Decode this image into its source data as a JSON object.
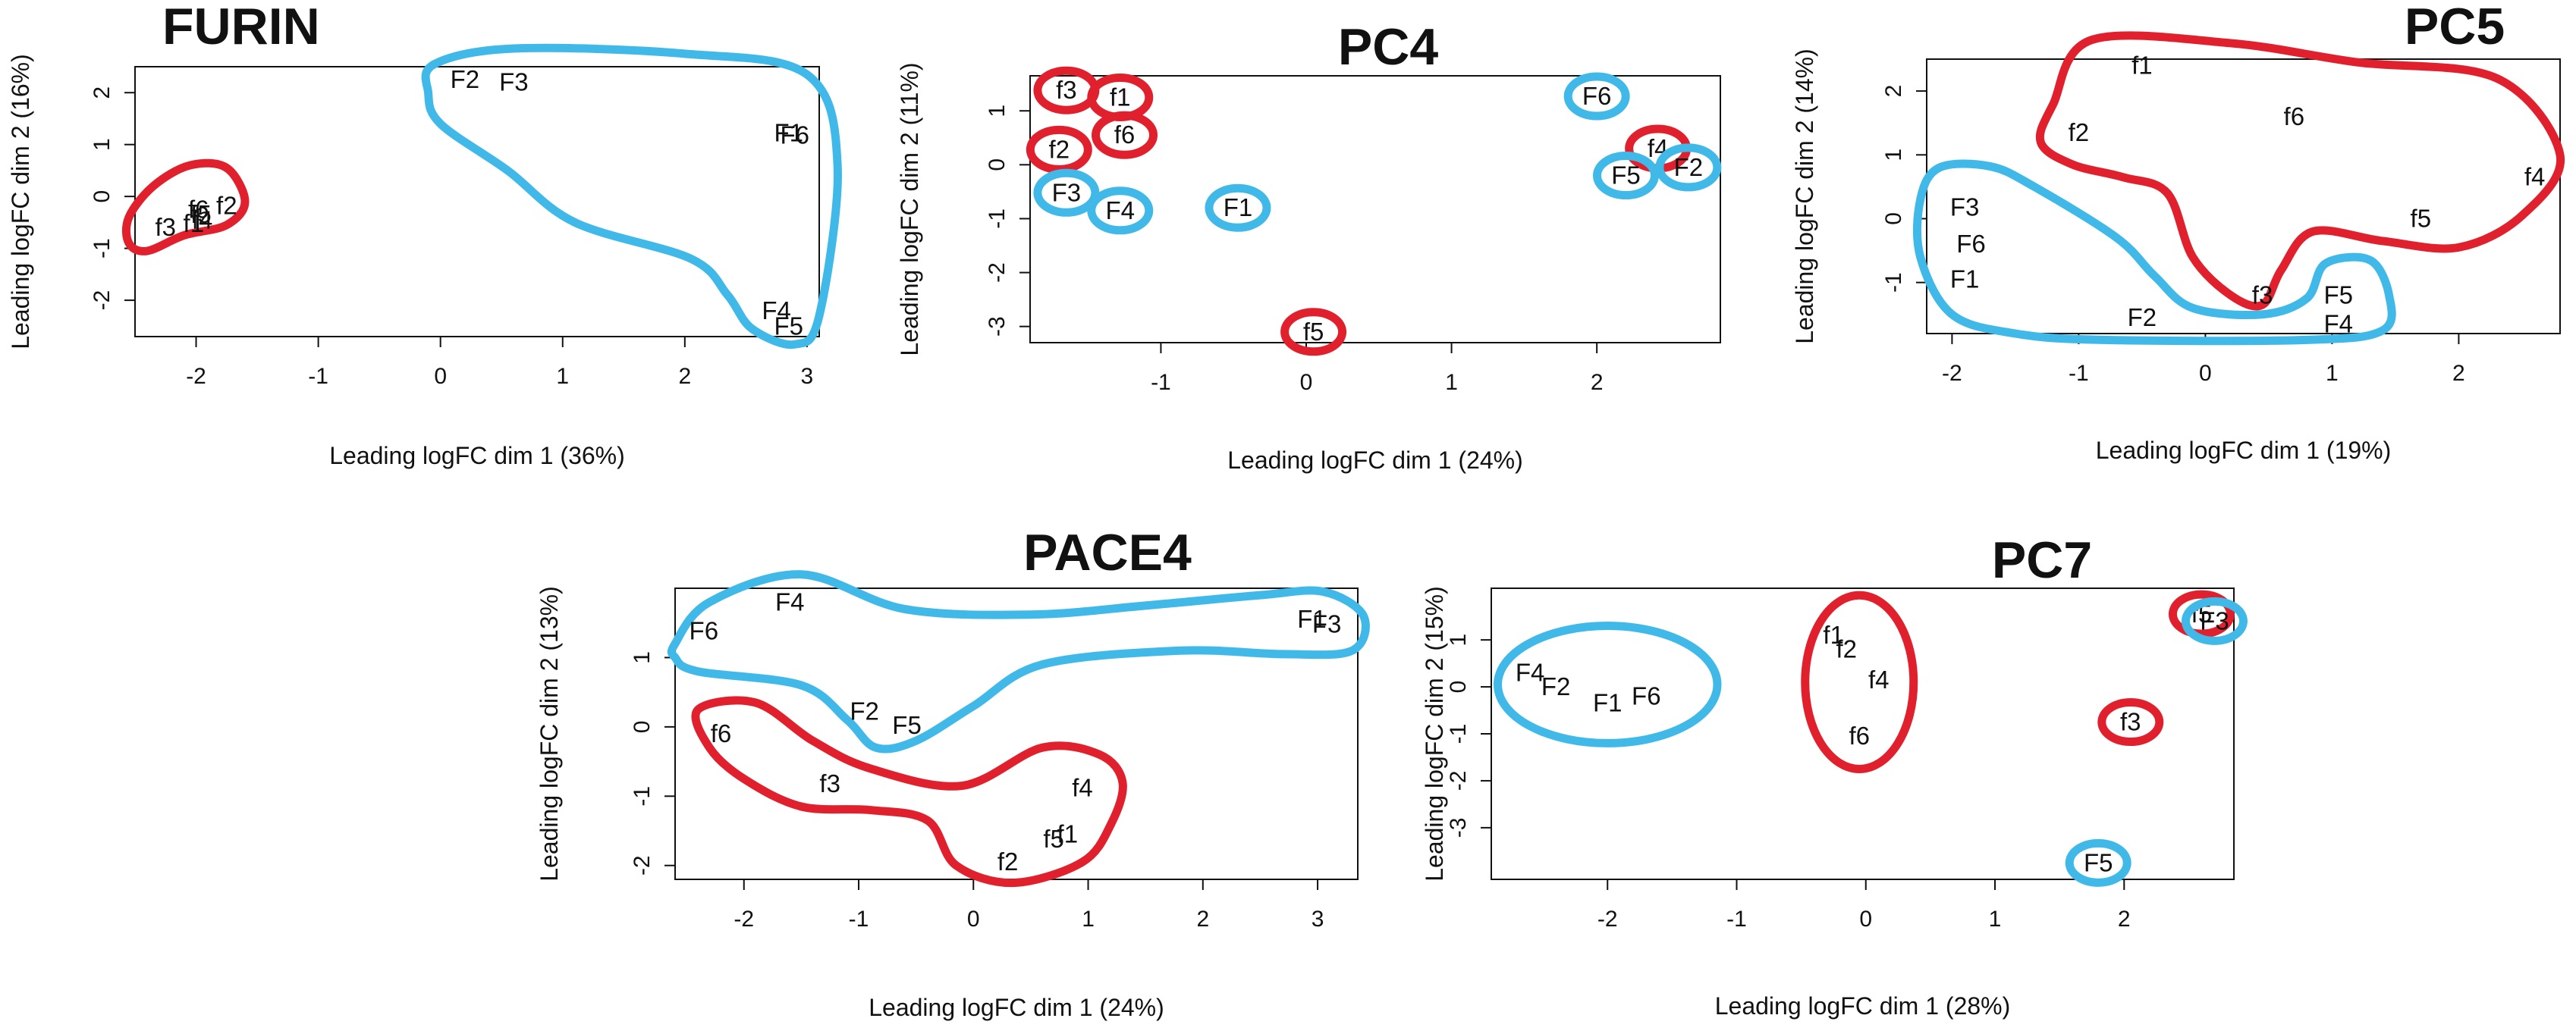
{
  "colors": {
    "cyan_group": "#41b9e8",
    "red_group": "#e1202d",
    "ink": "#111111"
  },
  "chart_data": [
    {
      "type": "scatter",
      "title": "FURIN",
      "xlabel": "Leading logFC dim 1 (36%)",
      "ylabel": "Leading logFC dim 2 (16%)",
      "xlim": [
        -2.5,
        3.1
      ],
      "ylim": [
        -2.7,
        2.5
      ],
      "xticks": [
        -2,
        -1,
        0,
        1,
        2,
        3
      ],
      "yticks": [
        -2,
        -1,
        0,
        1,
        2
      ],
      "points": [
        {
          "label": "F2",
          "x": 0.2,
          "y": 2.25
        },
        {
          "label": "F3",
          "x": 0.6,
          "y": 2.2
        },
        {
          "label": "F1",
          "x": 2.85,
          "y": 1.22
        },
        {
          "label": "F6",
          "x": 2.9,
          "y": 1.18
        },
        {
          "label": "F4",
          "x": 2.75,
          "y": -2.2
        },
        {
          "label": "F5",
          "x": 2.85,
          "y": -2.5
        },
        {
          "label": "f3",
          "x": -2.25,
          "y": -0.6
        },
        {
          "label": "f1",
          "x": -2.02,
          "y": -0.52
        },
        {
          "label": "f4",
          "x": -1.95,
          "y": -0.46
        },
        {
          "label": "f6",
          "x": -1.98,
          "y": -0.25
        },
        {
          "label": "f5",
          "x": -1.96,
          "y": -0.35
        },
        {
          "label": "f2",
          "x": -1.75,
          "y": -0.18
        }
      ],
      "groups": [
        {
          "color": "cyan",
          "shape": [
            [
              -0.05,
              2.55
            ],
            [
              0.6,
              2.85
            ],
            [
              2.0,
              2.75
            ],
            [
              3.0,
              2.35
            ],
            [
              3.25,
              0.6
            ],
            [
              3.1,
              -2.3
            ],
            [
              2.9,
              -2.85
            ],
            [
              2.55,
              -2.55
            ],
            [
              2.35,
              -1.9
            ],
            [
              2.05,
              -1.2
            ],
            [
              1.1,
              -0.5
            ],
            [
              0.55,
              0.5
            ],
            [
              0.0,
              1.4
            ],
            [
              -0.1,
              2.0
            ]
          ]
        },
        {
          "color": "red",
          "shape": [
            [
              -2.4,
              -1.05
            ],
            [
              -2.1,
              -0.75
            ],
            [
              -1.75,
              -0.55
            ],
            [
              -1.6,
              -0.1
            ],
            [
              -1.75,
              0.55
            ],
            [
              -2.05,
              0.6
            ],
            [
              -2.35,
              0.2
            ],
            [
              -2.55,
              -0.4
            ],
            [
              -2.55,
              -0.9
            ]
          ]
        }
      ]
    },
    {
      "type": "scatter",
      "title": "PC4",
      "xlabel": "Leading logFC dim 1 (24%)",
      "ylabel": "Leading logFC dim 2 (11%)",
      "xlim": [
        -1.9,
        2.85
      ],
      "ylim": [
        -3.3,
        1.65
      ],
      "xticks": [
        -1,
        0,
        1,
        2
      ],
      "yticks": [
        -3,
        -2,
        -1,
        0,
        1
      ],
      "points": [
        {
          "label": "f3",
          "x": -1.65,
          "y": 1.38,
          "color": "red",
          "ellipse": true
        },
        {
          "label": "f1",
          "x": -1.28,
          "y": 1.25,
          "color": "red",
          "ellipse": true
        },
        {
          "label": "f6",
          "x": -1.25,
          "y": 0.55,
          "color": "red",
          "ellipse": true
        },
        {
          "label": "f2",
          "x": -1.7,
          "y": 0.28,
          "color": "red",
          "ellipse": true
        },
        {
          "label": "F3",
          "x": -1.65,
          "y": -0.52,
          "color": "cyan",
          "ellipse": true
        },
        {
          "label": "F4",
          "x": -1.28,
          "y": -0.85,
          "color": "cyan",
          "ellipse": true
        },
        {
          "label": "F1",
          "x": -0.47,
          "y": -0.8,
          "color": "cyan",
          "ellipse": true
        },
        {
          "label": "f5",
          "x": 0.05,
          "y": -3.1,
          "color": "red",
          "ellipse": true
        },
        {
          "label": "F6",
          "x": 2.0,
          "y": 1.27,
          "color": "cyan",
          "ellipse": true
        },
        {
          "label": "f4",
          "x": 2.42,
          "y": 0.3,
          "color": "red",
          "ellipse": true
        },
        {
          "label": "F5",
          "x": 2.2,
          "y": -0.2,
          "color": "cyan",
          "ellipse": true
        },
        {
          "label": "F2",
          "x": 2.63,
          "y": -0.05,
          "color": "cyan",
          "ellipse": true
        }
      ]
    },
    {
      "type": "scatter",
      "title": "PC5",
      "xlabel": "Leading logFC dim 1 (19%)",
      "ylabel": "Leading logFC dim 2 (14%)",
      "xlim": [
        -2.2,
        2.8
      ],
      "ylim": [
        -1.8,
        2.5
      ],
      "xticks": [
        -2,
        -1,
        0,
        1,
        2
      ],
      "yticks": [
        -1,
        0,
        1,
        2
      ],
      "points": [
        {
          "label": "f1",
          "x": -0.5,
          "y": 2.4
        },
        {
          "label": "f6",
          "x": 0.7,
          "y": 1.6
        },
        {
          "label": "f2",
          "x": -1.0,
          "y": 1.35
        },
        {
          "label": "f4",
          "x": 2.6,
          "y": 0.65
        },
        {
          "label": "f5",
          "x": 1.7,
          "y": 0.0
        },
        {
          "label": "f3",
          "x": 0.45,
          "y": -1.2
        },
        {
          "label": "F3",
          "x": -1.9,
          "y": 0.18
        },
        {
          "label": "F6",
          "x": -1.85,
          "y": -0.4
        },
        {
          "label": "F1",
          "x": -1.9,
          "y": -0.95
        },
        {
          "label": "F2",
          "x": -0.5,
          "y": -1.55
        },
        {
          "label": "F5",
          "x": 1.05,
          "y": -1.2
        },
        {
          "label": "F4",
          "x": 1.05,
          "y": -1.65
        }
      ],
      "groups": [
        {
          "color": "red",
          "shape": [
            [
              -0.9,
              2.8
            ],
            [
              0.2,
              2.75
            ],
            [
              1.2,
              2.45
            ],
            [
              2.3,
              2.2
            ],
            [
              2.8,
              1.0
            ],
            [
              2.5,
              0.05
            ],
            [
              2.0,
              -0.45
            ],
            [
              1.4,
              -0.35
            ],
            [
              0.85,
              -0.2
            ],
            [
              0.6,
              -0.8
            ],
            [
              0.45,
              -1.35
            ],
            [
              0.2,
              -1.2
            ],
            [
              -0.1,
              -0.6
            ],
            [
              -0.3,
              0.4
            ],
            [
              -0.65,
              0.65
            ],
            [
              -1.05,
              0.85
            ],
            [
              -1.3,
              1.2
            ],
            [
              -1.2,
              1.8
            ]
          ]
        },
        {
          "color": "cyan",
          "shape": [
            [
              -2.1,
              0.8
            ],
            [
              -1.7,
              0.82
            ],
            [
              -1.35,
              0.5
            ],
            [
              -0.7,
              -0.3
            ],
            [
              -0.4,
              -0.9
            ],
            [
              -0.1,
              -1.4
            ],
            [
              0.45,
              -1.5
            ],
            [
              0.8,
              -1.25
            ],
            [
              0.95,
              -0.7
            ],
            [
              1.3,
              -0.65
            ],
            [
              1.45,
              -1.2
            ],
            [
              1.4,
              -1.75
            ],
            [
              0.8,
              -1.9
            ],
            [
              -0.8,
              -1.9
            ],
            [
              -1.5,
              -1.8
            ],
            [
              -2.0,
              -1.5
            ],
            [
              -2.25,
              -0.6
            ],
            [
              -2.25,
              0.3
            ]
          ]
        }
      ]
    },
    {
      "type": "scatter",
      "title": "PACE4",
      "xlabel": "Leading logFC dim 1 (24%)",
      "ylabel": "Leading logFC dim 2 (13%)",
      "xlim": [
        -2.6,
        3.35
      ],
      "ylim": [
        -2.2,
        2.0
      ],
      "xticks": [
        -2,
        -1,
        0,
        1,
        2,
        3
      ],
      "yticks": [
        -2,
        -1,
        0,
        1
      ],
      "points": [
        {
          "label": "F6",
          "x": -2.35,
          "y": 1.38
        },
        {
          "label": "F4",
          "x": -1.6,
          "y": 1.8
        },
        {
          "label": "F1",
          "x": 2.95,
          "y": 1.55
        },
        {
          "label": "F3",
          "x": 3.08,
          "y": 1.48
        },
        {
          "label": "F2",
          "x": -0.95,
          "y": 0.22
        },
        {
          "label": "F5",
          "x": -0.58,
          "y": 0.02
        },
        {
          "label": "f6",
          "x": -2.2,
          "y": -0.1
        },
        {
          "label": "f3",
          "x": -1.25,
          "y": -0.82
        },
        {
          "label": "f4",
          "x": 0.95,
          "y": -0.88
        },
        {
          "label": "f5",
          "x": 0.7,
          "y": -1.62
        },
        {
          "label": "f1",
          "x": 0.82,
          "y": -1.55
        },
        {
          "label": "f2",
          "x": 0.3,
          "y": -1.95
        }
      ],
      "groups": [
        {
          "color": "cyan",
          "shape": [
            [
              -2.6,
              1.2
            ],
            [
              -2.3,
              1.8
            ],
            [
              -1.5,
              2.2
            ],
            [
              -0.6,
              1.7
            ],
            [
              0.5,
              1.62
            ],
            [
              1.5,
              1.75
            ],
            [
              2.5,
              1.9
            ],
            [
              3.05,
              1.95
            ],
            [
              3.4,
              1.6
            ],
            [
              3.3,
              1.1
            ],
            [
              2.7,
              1.05
            ],
            [
              1.8,
              1.1
            ],
            [
              0.6,
              0.9
            ],
            [
              0.0,
              0.3
            ],
            [
              -0.5,
              -0.2
            ],
            [
              -0.85,
              -0.3
            ],
            [
              -1.1,
              0.1
            ],
            [
              -1.5,
              0.6
            ],
            [
              -2.4,
              0.8
            ],
            [
              -2.6,
              1.0
            ]
          ]
        },
        {
          "color": "red",
          "shape": [
            [
              -2.4,
              0.25
            ],
            [
              -1.9,
              0.35
            ],
            [
              -1.4,
              -0.2
            ],
            [
              -0.9,
              -0.6
            ],
            [
              -0.1,
              -0.85
            ],
            [
              0.6,
              -0.3
            ],
            [
              1.1,
              -0.4
            ],
            [
              1.3,
              -0.8
            ],
            [
              1.2,
              -1.4
            ],
            [
              0.95,
              -1.95
            ],
            [
              0.35,
              -2.25
            ],
            [
              -0.15,
              -2.0
            ],
            [
              -0.4,
              -1.35
            ],
            [
              -0.9,
              -1.2
            ],
            [
              -1.5,
              -1.15
            ],
            [
              -2.0,
              -0.75
            ],
            [
              -2.3,
              -0.3
            ]
          ]
        }
      ]
    },
    {
      "type": "scatter",
      "title": "PC7",
      "xlabel": "Leading logFC dim 1 (28%)",
      "ylabel": "Leading logFC dim 2 (15%)",
      "xlim": [
        -2.9,
        2.85
      ],
      "ylim": [
        -4.1,
        2.1
      ],
      "xticks": [
        -2,
        -1,
        0,
        1,
        2
      ],
      "yticks": [
        -3,
        -2,
        -1,
        0,
        1
      ],
      "points": [
        {
          "label": "F4",
          "x": -2.6,
          "y": 0.3
        },
        {
          "label": "F2",
          "x": -2.4,
          "y": 0.0
        },
        {
          "label": "F1",
          "x": -2.0,
          "y": -0.35
        },
        {
          "label": "F6",
          "x": -1.7,
          "y": -0.2
        },
        {
          "label": "f1",
          "x": -0.25,
          "y": 1.1
        },
        {
          "label": "f2",
          "x": -0.15,
          "y": 0.8
        },
        {
          "label": "f4",
          "x": 0.1,
          "y": 0.15
        },
        {
          "label": "f6",
          "x": -0.05,
          "y": -1.05
        },
        {
          "label": "f3",
          "x": 2.05,
          "y": -0.75,
          "color": "red",
          "ellipse": true
        },
        {
          "label": "F5",
          "x": 1.8,
          "y": -3.75,
          "color": "cyan",
          "ellipse": true
        },
        {
          "label": "f5",
          "x": 2.6,
          "y": 1.55,
          "color": "red",
          "ellipse": true
        },
        {
          "label": "F3",
          "x": 2.7,
          "y": 1.4,
          "color": "cyan",
          "ellipse": true
        }
      ],
      "groups": [
        {
          "color": "cyan",
          "type": "ellipse",
          "center": [
            -2.0,
            0.05
          ],
          "radii": [
            0.85,
            1.25
          ]
        },
        {
          "color": "red",
          "type": "ellipse",
          "center": [
            -0.05,
            0.1
          ],
          "radii": [
            0.42,
            1.85
          ]
        }
      ]
    }
  ]
}
